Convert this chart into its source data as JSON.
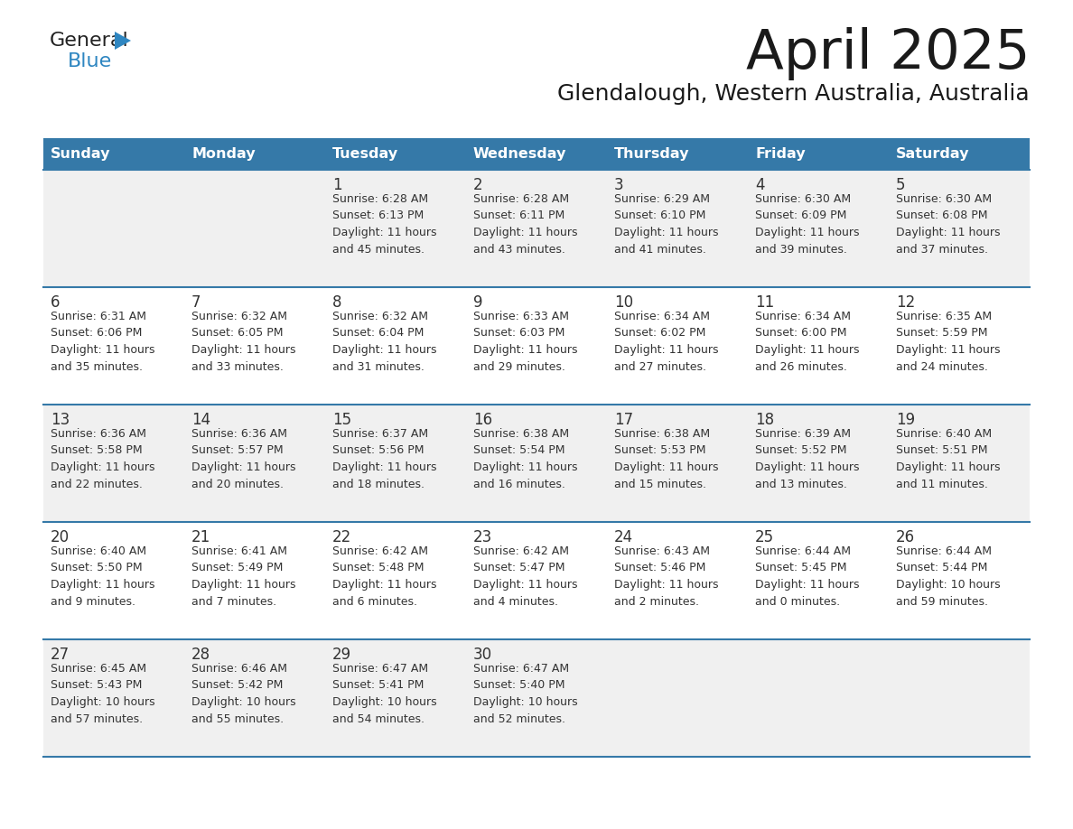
{
  "title": "April 2025",
  "subtitle": "Glendalough, Western Australia, Australia",
  "days_of_week": [
    "Sunday",
    "Monday",
    "Tuesday",
    "Wednesday",
    "Thursday",
    "Friday",
    "Saturday"
  ],
  "header_bg": "#3579A8",
  "header_text": "#FFFFFF",
  "row_bg_odd": "#F0F0F0",
  "row_bg_even": "#FFFFFF",
  "border_color": "#3579A8",
  "text_color": "#333333",
  "logo_general_color": "#222222",
  "logo_blue_color": "#2E86C1",
  "logo_triangle_color": "#2E86C1",
  "calendar_data": [
    [
      {
        "day": "",
        "info": ""
      },
      {
        "day": "",
        "info": ""
      },
      {
        "day": "1",
        "info": "Sunrise: 6:28 AM\nSunset: 6:13 PM\nDaylight: 11 hours\nand 45 minutes."
      },
      {
        "day": "2",
        "info": "Sunrise: 6:28 AM\nSunset: 6:11 PM\nDaylight: 11 hours\nand 43 minutes."
      },
      {
        "day": "3",
        "info": "Sunrise: 6:29 AM\nSunset: 6:10 PM\nDaylight: 11 hours\nand 41 minutes."
      },
      {
        "day": "4",
        "info": "Sunrise: 6:30 AM\nSunset: 6:09 PM\nDaylight: 11 hours\nand 39 minutes."
      },
      {
        "day": "5",
        "info": "Sunrise: 6:30 AM\nSunset: 6:08 PM\nDaylight: 11 hours\nand 37 minutes."
      }
    ],
    [
      {
        "day": "6",
        "info": "Sunrise: 6:31 AM\nSunset: 6:06 PM\nDaylight: 11 hours\nand 35 minutes."
      },
      {
        "day": "7",
        "info": "Sunrise: 6:32 AM\nSunset: 6:05 PM\nDaylight: 11 hours\nand 33 minutes."
      },
      {
        "day": "8",
        "info": "Sunrise: 6:32 AM\nSunset: 6:04 PM\nDaylight: 11 hours\nand 31 minutes."
      },
      {
        "day": "9",
        "info": "Sunrise: 6:33 AM\nSunset: 6:03 PM\nDaylight: 11 hours\nand 29 minutes."
      },
      {
        "day": "10",
        "info": "Sunrise: 6:34 AM\nSunset: 6:02 PM\nDaylight: 11 hours\nand 27 minutes."
      },
      {
        "day": "11",
        "info": "Sunrise: 6:34 AM\nSunset: 6:00 PM\nDaylight: 11 hours\nand 26 minutes."
      },
      {
        "day": "12",
        "info": "Sunrise: 6:35 AM\nSunset: 5:59 PM\nDaylight: 11 hours\nand 24 minutes."
      }
    ],
    [
      {
        "day": "13",
        "info": "Sunrise: 6:36 AM\nSunset: 5:58 PM\nDaylight: 11 hours\nand 22 minutes."
      },
      {
        "day": "14",
        "info": "Sunrise: 6:36 AM\nSunset: 5:57 PM\nDaylight: 11 hours\nand 20 minutes."
      },
      {
        "day": "15",
        "info": "Sunrise: 6:37 AM\nSunset: 5:56 PM\nDaylight: 11 hours\nand 18 minutes."
      },
      {
        "day": "16",
        "info": "Sunrise: 6:38 AM\nSunset: 5:54 PM\nDaylight: 11 hours\nand 16 minutes."
      },
      {
        "day": "17",
        "info": "Sunrise: 6:38 AM\nSunset: 5:53 PM\nDaylight: 11 hours\nand 15 minutes."
      },
      {
        "day": "18",
        "info": "Sunrise: 6:39 AM\nSunset: 5:52 PM\nDaylight: 11 hours\nand 13 minutes."
      },
      {
        "day": "19",
        "info": "Sunrise: 6:40 AM\nSunset: 5:51 PM\nDaylight: 11 hours\nand 11 minutes."
      }
    ],
    [
      {
        "day": "20",
        "info": "Sunrise: 6:40 AM\nSunset: 5:50 PM\nDaylight: 11 hours\nand 9 minutes."
      },
      {
        "day": "21",
        "info": "Sunrise: 6:41 AM\nSunset: 5:49 PM\nDaylight: 11 hours\nand 7 minutes."
      },
      {
        "day": "22",
        "info": "Sunrise: 6:42 AM\nSunset: 5:48 PM\nDaylight: 11 hours\nand 6 minutes."
      },
      {
        "day": "23",
        "info": "Sunrise: 6:42 AM\nSunset: 5:47 PM\nDaylight: 11 hours\nand 4 minutes."
      },
      {
        "day": "24",
        "info": "Sunrise: 6:43 AM\nSunset: 5:46 PM\nDaylight: 11 hours\nand 2 minutes."
      },
      {
        "day": "25",
        "info": "Sunrise: 6:44 AM\nSunset: 5:45 PM\nDaylight: 11 hours\nand 0 minutes."
      },
      {
        "day": "26",
        "info": "Sunrise: 6:44 AM\nSunset: 5:44 PM\nDaylight: 10 hours\nand 59 minutes."
      }
    ],
    [
      {
        "day": "27",
        "info": "Sunrise: 6:45 AM\nSunset: 5:43 PM\nDaylight: 10 hours\nand 57 minutes."
      },
      {
        "day": "28",
        "info": "Sunrise: 6:46 AM\nSunset: 5:42 PM\nDaylight: 10 hours\nand 55 minutes."
      },
      {
        "day": "29",
        "info": "Sunrise: 6:47 AM\nSunset: 5:41 PM\nDaylight: 10 hours\nand 54 minutes."
      },
      {
        "day": "30",
        "info": "Sunrise: 6:47 AM\nSunset: 5:40 PM\nDaylight: 10 hours\nand 52 minutes."
      },
      {
        "day": "",
        "info": ""
      },
      {
        "day": "",
        "info": ""
      },
      {
        "day": "",
        "info": ""
      }
    ]
  ],
  "fig_width": 11.88,
  "fig_height": 9.18,
  "dpi": 100
}
